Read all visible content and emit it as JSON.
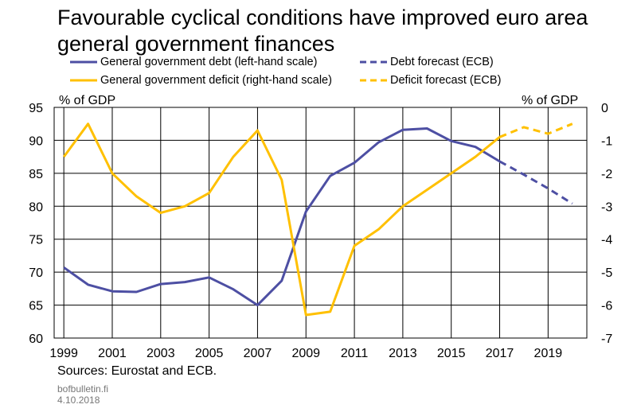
{
  "title": "Favourable cyclical conditions have improved euro area general government finances",
  "legend": {
    "debt": "General government debt (left-hand scale)",
    "deficit": "General government deficit (right-hand scale)",
    "debt_forecast": "Debt forecast (ECB)",
    "deficit_forecast": "Deficit forecast (ECB)"
  },
  "colors": {
    "debt": "#4d4fa3",
    "deficit": "#ffc000"
  },
  "footer": {
    "sources": "Sources: Eurostat and ECB.",
    "site": "bofbulletin.fi",
    "date": "4.10.2018"
  },
  "chart_data": {
    "type": "line",
    "title": "Favourable cyclical conditions have improved euro area general government finances",
    "ylabel_left": "% of GDP",
    "ylabel_right": "% of GDP",
    "ylim_left": [
      60,
      95
    ],
    "ylim_right": [
      -7,
      0
    ],
    "xlim": [
      1998.6,
      2020.6
    ],
    "x_ticks": [
      1999,
      2001,
      2003,
      2005,
      2007,
      2009,
      2011,
      2013,
      2015,
      2017,
      2019
    ],
    "y_ticks_left": [
      60,
      65,
      70,
      75,
      80,
      85,
      90,
      95
    ],
    "y_ticks_right": [
      -7,
      -6,
      -5,
      -4,
      -3,
      -2,
      -1,
      0
    ],
    "grid": true,
    "legend_position": "top",
    "series": [
      {
        "name": "General government debt (left-hand scale)",
        "axis": "left",
        "style": "solid",
        "x": [
          1999,
          2000,
          2001,
          2002,
          2003,
          2004,
          2005,
          2006,
          2007,
          2008,
          2009,
          2010,
          2011,
          2012,
          2013,
          2014,
          2015,
          2016,
          2017
        ],
        "values": [
          70.7,
          68.1,
          67.1,
          67.0,
          68.2,
          68.5,
          69.2,
          67.4,
          65.0,
          68.7,
          79.2,
          84.6,
          86.6,
          89.7,
          91.6,
          91.8,
          89.9,
          89.0,
          86.8
        ]
      },
      {
        "name": "General government deficit (right-hand scale)",
        "axis": "right",
        "style": "solid",
        "x": [
          1999,
          2000,
          2001,
          2002,
          2003,
          2004,
          2005,
          2006,
          2007,
          2008,
          2009,
          2010,
          2011,
          2012,
          2013,
          2014,
          2015,
          2016,
          2017
        ],
        "values": [
          -1.5,
          -0.5,
          -2.0,
          -2.7,
          -3.2,
          -3.0,
          -2.6,
          -1.5,
          -0.7,
          -2.2,
          -6.3,
          -6.2,
          -4.2,
          -3.7,
          -3.0,
          -2.5,
          -2.0,
          -1.5,
          -0.9
        ]
      },
      {
        "name": "Debt forecast (ECB)",
        "axis": "left",
        "style": "dashed",
        "x": [
          2017,
          2018,
          2019,
          2020
        ],
        "values": [
          86.8,
          84.8,
          82.7,
          80.4
        ]
      },
      {
        "name": "Deficit forecast (ECB)",
        "axis": "right",
        "style": "dashed",
        "x": [
          2017,
          2018,
          2019,
          2020
        ],
        "values": [
          -0.9,
          -0.6,
          -0.8,
          -0.5
        ]
      }
    ]
  }
}
